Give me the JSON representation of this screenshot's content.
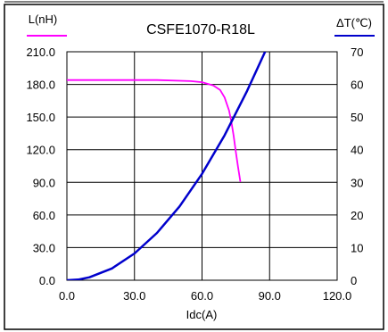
{
  "chart_data": {
    "type": "line",
    "title": "CSFE1070-R18L",
    "xlabel": "Idc(A)",
    "xlim": [
      0,
      120
    ],
    "x_ticks": [
      "0.0",
      "30.0",
      "60.0",
      "90.0",
      "120.0"
    ],
    "y_left": {
      "label": "L(nH)",
      "lim": [
        0,
        210
      ],
      "ticks": [
        "0.0",
        "30.0",
        "60.0",
        "90.0",
        "120.0",
        "150.0",
        "180.0",
        "210.0"
      ]
    },
    "y_right": {
      "label": "ΔT(℃)",
      "lim": [
        0,
        70
      ],
      "ticks": [
        "0",
        "10",
        "20",
        "30",
        "40",
        "50",
        "60",
        "70"
      ]
    },
    "grid": true,
    "series": [
      {
        "axis": "left",
        "color": "#ff00ff",
        "x": [
          0,
          20,
          40,
          55,
          60,
          65,
          68,
          70,
          72,
          73,
          74,
          75,
          76,
          77
        ],
        "y": [
          184,
          184,
          184,
          183,
          182,
          179,
          175,
          168,
          156,
          146,
          133,
          118,
          104,
          91
        ]
      },
      {
        "axis": "right",
        "color": "#0000cc",
        "x": [
          0,
          5,
          10,
          20,
          30,
          40,
          50,
          60,
          70,
          80,
          88
        ],
        "y": [
          0,
          0.2,
          0.9,
          3.6,
          8.2,
          14.5,
          22.6,
          32.6,
          44.4,
          58.0,
          70.0
        ]
      }
    ]
  }
}
